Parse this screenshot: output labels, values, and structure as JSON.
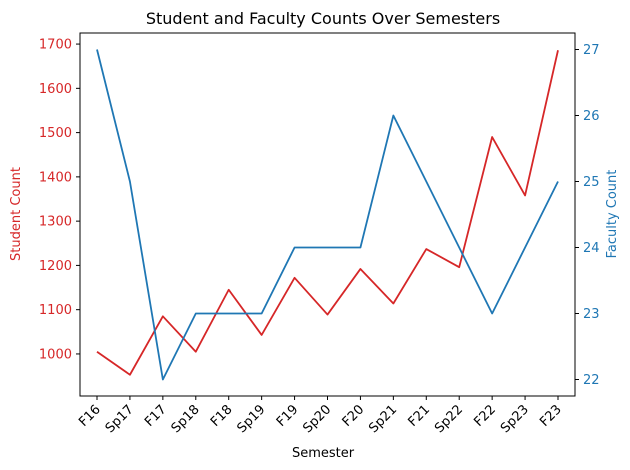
{
  "chart_data": {
    "type": "line",
    "title": "Student and Faculty Counts Over Semesters",
    "xlabel": "Semester",
    "categories": [
      "F16",
      "Sp17",
      "F17",
      "Sp18",
      "F18",
      "Sp19",
      "F19",
      "Sp20",
      "F20",
      "Sp21",
      "F21",
      "Sp22",
      "F22",
      "Sp23",
      "F23"
    ],
    "grid": false,
    "y_left": {
      "label": "Student Count",
      "color": "#d62728",
      "ylim": [
        905,
        1725
      ],
      "ticks": [
        1000,
        1100,
        1200,
        1300,
        1400,
        1500,
        1600,
        1700
      ],
      "tick_labels": [
        "1000",
        "1100",
        "1200",
        "1300",
        "1400",
        "1500",
        "1600",
        "1700"
      ]
    },
    "y_right": {
      "label": "Faculty Count",
      "color": "#1f77b4",
      "ylim": [
        21.75,
        27.25
      ],
      "ticks": [
        22,
        23,
        24,
        25,
        26,
        27
      ],
      "tick_labels": [
        "22",
        "23",
        "24",
        "25",
        "26",
        "27"
      ]
    },
    "series": [
      {
        "axis": "left",
        "color": "#d62728",
        "values": [
          1005,
          953,
          1085,
          1005,
          1145,
          1043,
          1172,
          1089,
          1192,
          1114,
          1237,
          1196,
          1490,
          1358,
          1686
        ]
      },
      {
        "axis": "right",
        "color": "#1f77b4",
        "values": [
          27,
          25,
          22,
          23,
          23,
          23,
          24,
          24,
          24,
          26,
          25,
          24,
          23,
          24,
          25
        ]
      }
    ]
  }
}
